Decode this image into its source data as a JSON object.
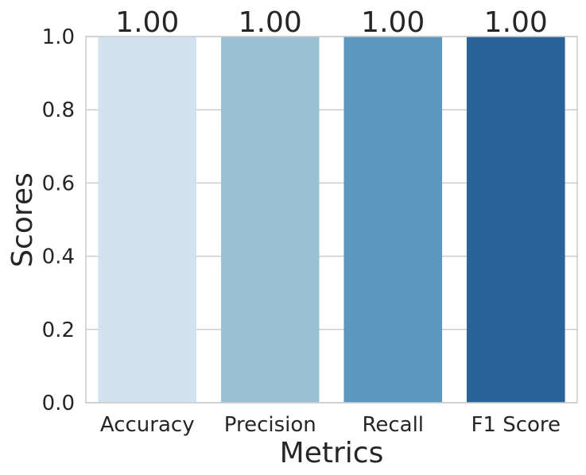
{
  "chart_data": {
    "type": "bar",
    "categories": [
      "Accuracy",
      "Precision",
      "Recall",
      "F1 Score"
    ],
    "values": [
      1.0,
      1.0,
      1.0,
      1.0
    ],
    "data_labels": [
      "1.00",
      "1.00",
      "1.00",
      "1.00"
    ],
    "title": "",
    "xlabel": "Metrics",
    "ylabel": "Scores",
    "ylim": [
      0,
      1.0
    ],
    "yticks": [
      0.0,
      0.2,
      0.4,
      0.6,
      0.8,
      1.0
    ],
    "ytick_labels": [
      "0.0",
      "0.2",
      "0.4",
      "0.6",
      "0.8",
      "1.0"
    ],
    "grid": "horizontal",
    "legend": "none",
    "colors": [
      "#d2e2ef",
      "#9bc1d5",
      "#5c97bf",
      "#2a6399"
    ],
    "gridline_color": "#cccccc",
    "spine_color": "#cccccc",
    "text_color": "#262626"
  }
}
